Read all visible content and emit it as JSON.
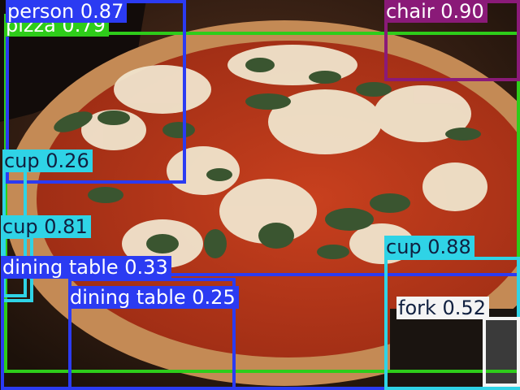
{
  "detections": [
    {
      "id": "pizza",
      "label": "pizza 0.79",
      "color": "#2ecc1a",
      "text_color": "#ffffff"
    },
    {
      "id": "person",
      "label": "person 0.87",
      "color": "#2b3bf2",
      "text_color": "#ffffff"
    },
    {
      "id": "chair",
      "label": "chair 0.90",
      "color": "#8a1a78",
      "text_color": "#ffffff"
    },
    {
      "id": "cup1",
      "label": "cup 0.26",
      "color": "#2fd3e6",
      "text_color": "#102040"
    },
    {
      "id": "cup2",
      "label": "cup 0.81",
      "color": "#2fd3e6",
      "text_color": "#102040"
    },
    {
      "id": "dt1",
      "label": "dining table 0.33",
      "color": "#2b3bf2",
      "text_color": "#ffffff"
    },
    {
      "id": "dt2",
      "label": "dining table 0.25",
      "color": "#2b3bf2",
      "text_color": "#ffffff"
    },
    {
      "id": "cup3",
      "label": "cup 0.88",
      "color": "#2fd3e6",
      "text_color": "#102040"
    },
    {
      "id": "fork",
      "label": "fork 0.52",
      "color": "#f4f4f4",
      "text_color": "#102040"
    }
  ]
}
